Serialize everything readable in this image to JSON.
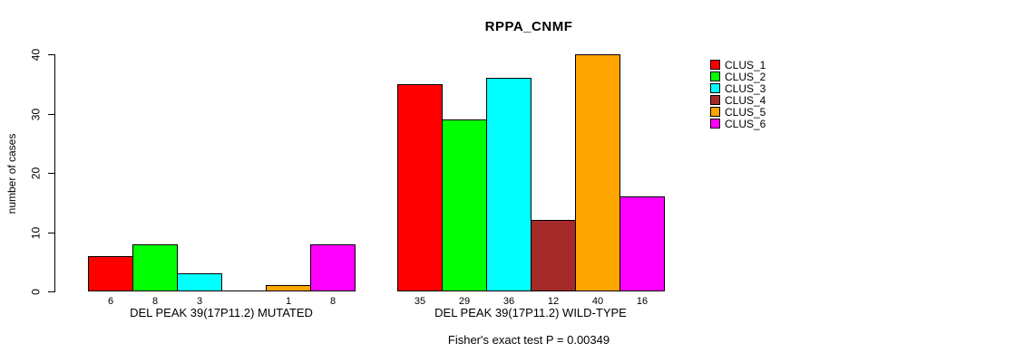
{
  "chart": {
    "title": "RPPA_CNMF",
    "ylabel": "number of cases",
    "footer": "Fisher's exact test P = 0.00349"
  },
  "chart_data": {
    "type": "bar",
    "title": "RPPA_CNMF",
    "xlabel": "",
    "ylabel": "number of cases",
    "ylim": [
      0,
      40
    ],
    "yticks": [
      "0",
      "10",
      "20",
      "30",
      "40"
    ],
    "grid": false,
    "legend_position": "top-right",
    "series_names": [
      "CLUS_1",
      "CLUS_2",
      "CLUS_3",
      "CLUS_4",
      "CLUS_5",
      "CLUS_6"
    ],
    "colors": [
      "#FF0000",
      "#00FF00",
      "#00FFFF",
      "#A52A2A",
      "#FFA500",
      "#FF00FF"
    ],
    "groups": [
      {
        "label": "DEL PEAK 39(17P11.2) MUTATED",
        "values": [
          6,
          8,
          3,
          0,
          1,
          8
        ],
        "value_labels": [
          "6",
          "8",
          "3",
          "",
          "1",
          "8"
        ]
      },
      {
        "label": "DEL PEAK 39(17P11.2) WILD-TYPE",
        "values": [
          35,
          29,
          36,
          12,
          40,
          16
        ],
        "value_labels": [
          "35",
          "29",
          "36",
          "12",
          "40",
          "16"
        ]
      }
    ],
    "annotation": "Fisher's exact test P = 0.00349"
  }
}
